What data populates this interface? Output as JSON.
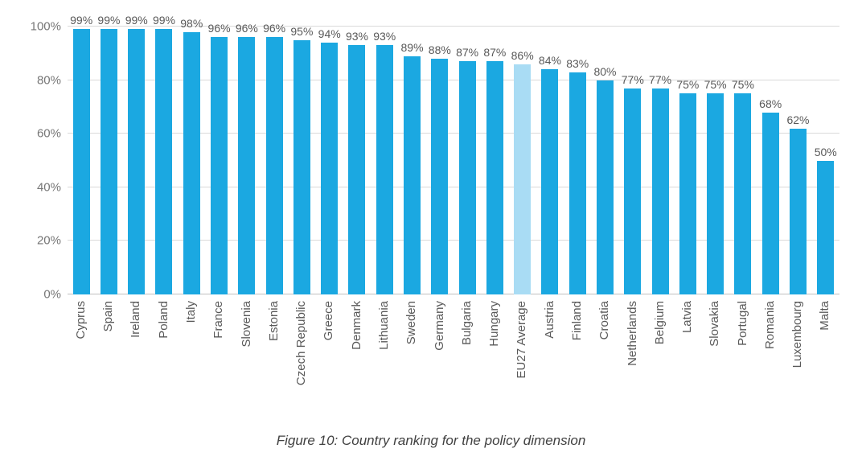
{
  "figure": {
    "caption": "Figure 10: Country ranking for the policy dimension"
  },
  "chart_data": {
    "type": "bar",
    "title": "",
    "xlabel": "",
    "ylabel": "",
    "ylim": [
      0,
      100
    ],
    "yticks": [
      0,
      20,
      40,
      60,
      80,
      100
    ],
    "ytick_labels": [
      "0%",
      "20%",
      "40%",
      "60%",
      "80%",
      "100%"
    ],
    "grid": true,
    "legend": "none",
    "bar_color": "#1BA8E1",
    "highlight_color": "#A9DCF4",
    "highlight_category": "EU27 Average",
    "categories": [
      "Cyprus",
      "Spain",
      "Ireland",
      "Poland",
      "Italy",
      "France",
      "Slovenia",
      "Estonia",
      "Czech Republic",
      "Greece",
      "Denmark",
      "Lithuania",
      "Sweden",
      "Germany",
      "Bulgaria",
      "Hungary",
      "EU27 Average",
      "Austria",
      "Finland",
      "Croatia",
      "Netherlands",
      "Belgium",
      "Latvia",
      "Slovakia",
      "Portugal",
      "Romania",
      "Luxembourg",
      "Malta"
    ],
    "values": [
      99,
      99,
      99,
      99,
      98,
      96,
      96,
      96,
      95,
      94,
      93,
      93,
      89,
      88,
      87,
      87,
      86,
      84,
      83,
      80,
      77,
      77,
      75,
      75,
      75,
      68,
      62,
      50
    ],
    "value_labels": [
      "99%",
      "99%",
      "99%",
      "99%",
      "98%",
      "96%",
      "96%",
      "96%",
      "95%",
      "94%",
      "93%",
      "93%",
      "89%",
      "88%",
      "87%",
      "87%",
      "86%",
      "84%",
      "83%",
      "80%",
      "77%",
      "77%",
      "75%",
      "75%",
      "75%",
      "68%",
      "62%",
      "50%"
    ]
  }
}
